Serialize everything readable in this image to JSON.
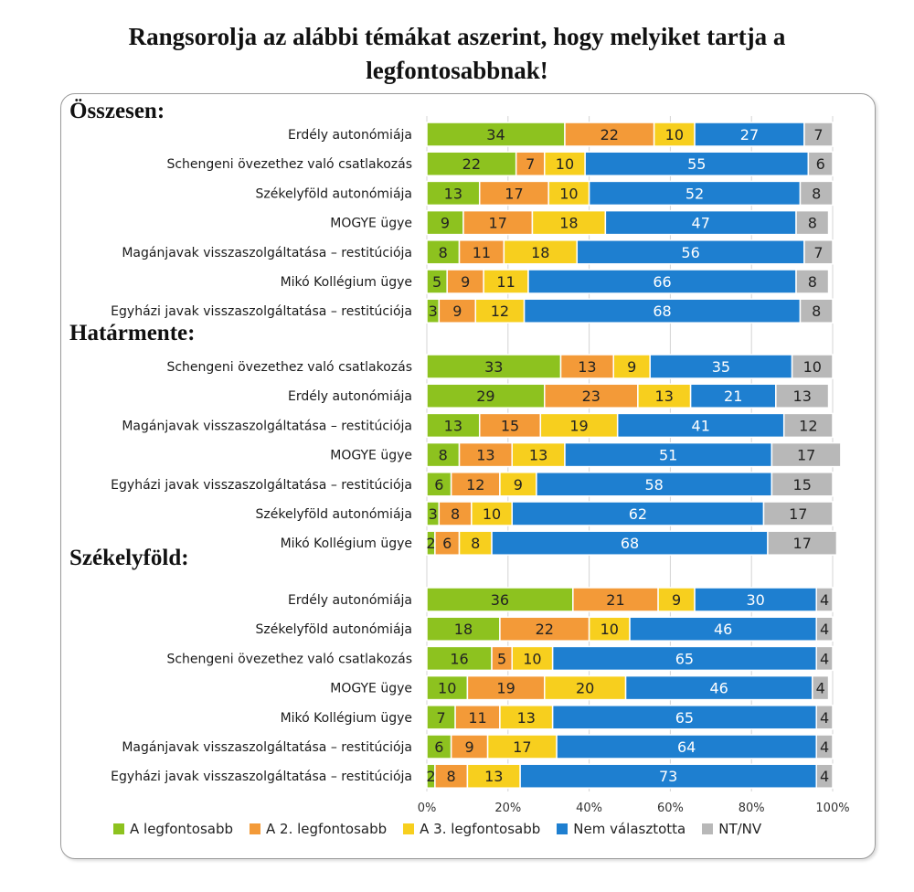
{
  "title": "Rangsorolja az alábbi témákat aszerint, hogy melyiket tartja a legfontosabbnak!",
  "chart_data": {
    "type": "bar",
    "orientation": "horizontal-stacked-100",
    "x_ticks": [
      "0%",
      "20%",
      "40%",
      "60%",
      "80%",
      "100%"
    ],
    "xlim": [
      0,
      100
    ],
    "grid": true,
    "legend_position": "bottom",
    "series_names": [
      "A legfontosabb",
      "A 2. legfontosabb",
      "A 3. legfontosabb",
      "Nem választotta",
      "NT/NV"
    ],
    "colors": [
      "#8dc21f",
      "#f39a38",
      "#f7cf1e",
      "#1e7fd0",
      "#b8b8b8"
    ],
    "groups": [
      {
        "title": "Összesen:",
        "rows": [
          {
            "label": "Erdély autonómiája",
            "values": [
              34,
              22,
              10,
              27,
              7
            ]
          },
          {
            "label": "Schengeni övezethez való csatlakozás",
            "values": [
              22,
              7,
              10,
              55,
              6
            ]
          },
          {
            "label": "Székelyföld autonómiája",
            "values": [
              13,
              17,
              10,
              52,
              8
            ]
          },
          {
            "label": "MOGYE ügye",
            "values": [
              9,
              17,
              18,
              47,
              8
            ]
          },
          {
            "label": "Magánjavak visszaszolgáltatása – restitúciója",
            "values": [
              8,
              11,
              18,
              56,
              7
            ]
          },
          {
            "label": "Mikó Kollégium ügye",
            "values": [
              5,
              9,
              11,
              66,
              8
            ]
          },
          {
            "label": "Egyházi javak visszaszolgáltatása – restitúciója",
            "values": [
              3,
              9,
              12,
              68,
              8
            ]
          }
        ]
      },
      {
        "title": "Határmente:",
        "rows": [
          {
            "label": "Schengeni övezethez való csatlakozás",
            "values": [
              33,
              13,
              9,
              35,
              10
            ]
          },
          {
            "label": "Erdély autonómiája",
            "values": [
              29,
              23,
              13,
              21,
              13
            ]
          },
          {
            "label": "Magánjavak visszaszolgáltatása – restitúciója",
            "values": [
              13,
              15,
              19,
              41,
              12
            ]
          },
          {
            "label": "MOGYE ügye",
            "values": [
              8,
              13,
              13,
              51,
              17
            ]
          },
          {
            "label": "Egyházi javak visszaszolgáltatása – restitúciója",
            "values": [
              6,
              12,
              9,
              58,
              15
            ]
          },
          {
            "label": "Székelyföld autonómiája",
            "values": [
              3,
              8,
              10,
              62,
              17
            ]
          },
          {
            "label": "Mikó Kollégium ügye",
            "values": [
              2,
              6,
              8,
              68,
              17
            ]
          }
        ]
      },
      {
        "title": "Székelyföld:",
        "rows": [
          {
            "label": "Erdély autonómiája",
            "values": [
              36,
              21,
              9,
              30,
              4
            ]
          },
          {
            "label": "Székelyföld autonómiája",
            "values": [
              18,
              22,
              10,
              46,
              4
            ]
          },
          {
            "label": "Schengeni övezethez való csatlakozás",
            "values": [
              16,
              5,
              10,
              65,
              4
            ]
          },
          {
            "label": "MOGYE ügye",
            "values": [
              10,
              19,
              20,
              46,
              4
            ]
          },
          {
            "label": "Mikó Kollégium ügye",
            "values": [
              7,
              11,
              13,
              65,
              4
            ]
          },
          {
            "label": "Magánjavak visszaszolgáltatása – restitúciója",
            "values": [
              6,
              9,
              17,
              64,
              4
            ]
          },
          {
            "label": "Egyházi javak visszaszolgáltatása – restitúciója",
            "values": [
              2,
              8,
              13,
              73,
              4
            ]
          }
        ]
      }
    ]
  }
}
